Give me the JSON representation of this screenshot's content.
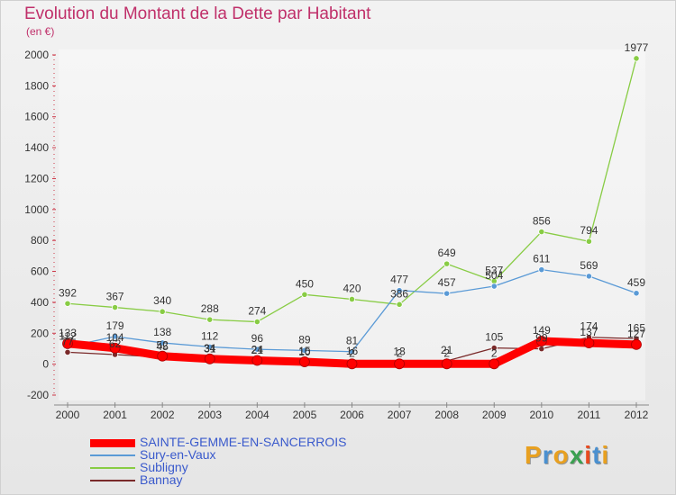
{
  "title": "Evolution du Montant de la Dette par Habitant",
  "unit": "(en €)",
  "logo": {
    "text": "Proxiti",
    "colors": [
      "#e8a020",
      "#4a90d0",
      "#e8a020",
      "#3aa050",
      "#e84a20",
      "#4a90d0",
      "#e8a020"
    ]
  },
  "chart_data": {
    "type": "line",
    "title": "Evolution du Montant de la Dette par Habitant",
    "ylabel": "(en €)",
    "xlabel": "",
    "x": [
      "2000",
      "2001",
      "2002",
      "2003",
      "2004",
      "2005",
      "2006",
      "2007",
      "2008",
      "2009",
      "2010",
      "2011",
      "2012"
    ],
    "ylim": [
      -200,
      2000
    ],
    "yticks": [
      "-200",
      "0",
      "200",
      "400",
      "600",
      "800",
      "1000",
      "1200",
      "1400",
      "1600",
      "1800",
      "2000"
    ],
    "grid": false,
    "legend_position": "bottom-left",
    "series": [
      {
        "name": "SAINTE-GEMME-EN-SANCERROIS",
        "color": "#ff0000",
        "values": [
          133,
          104,
          52,
          34,
          24,
          15,
          2,
          2,
          2,
          2,
          149,
          137,
          127
        ],
        "labels": [
          "133",
          "104",
          "52",
          "34",
          "24",
          "15",
          "2",
          "2",
          "2",
          "2",
          "149",
          "137",
          "127"
        ]
      },
      {
        "name": "Sury-en-Vaux",
        "color": "#5a9ad6",
        "values": [
          112,
          179,
          138,
          112,
          96,
          89,
          81,
          477,
          457,
          504,
          611,
          569,
          459
        ],
        "labels": [
          "112",
          "179",
          "138",
          "112",
          "96",
          "89",
          "81",
          "477",
          "457",
          "504",
          "611",
          "569",
          "459"
        ]
      },
      {
        "name": "Subligny",
        "color": "#88cc44",
        "values": [
          392,
          367,
          340,
          288,
          274,
          450,
          420,
          386,
          649,
          537,
          856,
          794,
          1977
        ],
        "labels": [
          "392",
          "367",
          "340",
          "288",
          "274",
          "450",
          "420",
          "386",
          "649",
          "537",
          "856",
          "794",
          "1977"
        ]
      },
      {
        "name": "Bannay",
        "color": "#7a2a2a",
        "values": [
          77,
          62,
          45,
          31,
          21,
          10,
          16,
          13,
          21,
          105,
          99,
          174,
          165
        ],
        "labels": [
          "77",
          "62",
          "45",
          "31",
          "21",
          "10",
          "16",
          "13",
          "21",
          "105",
          "99",
          "174",
          "165"
        ]
      }
    ]
  }
}
